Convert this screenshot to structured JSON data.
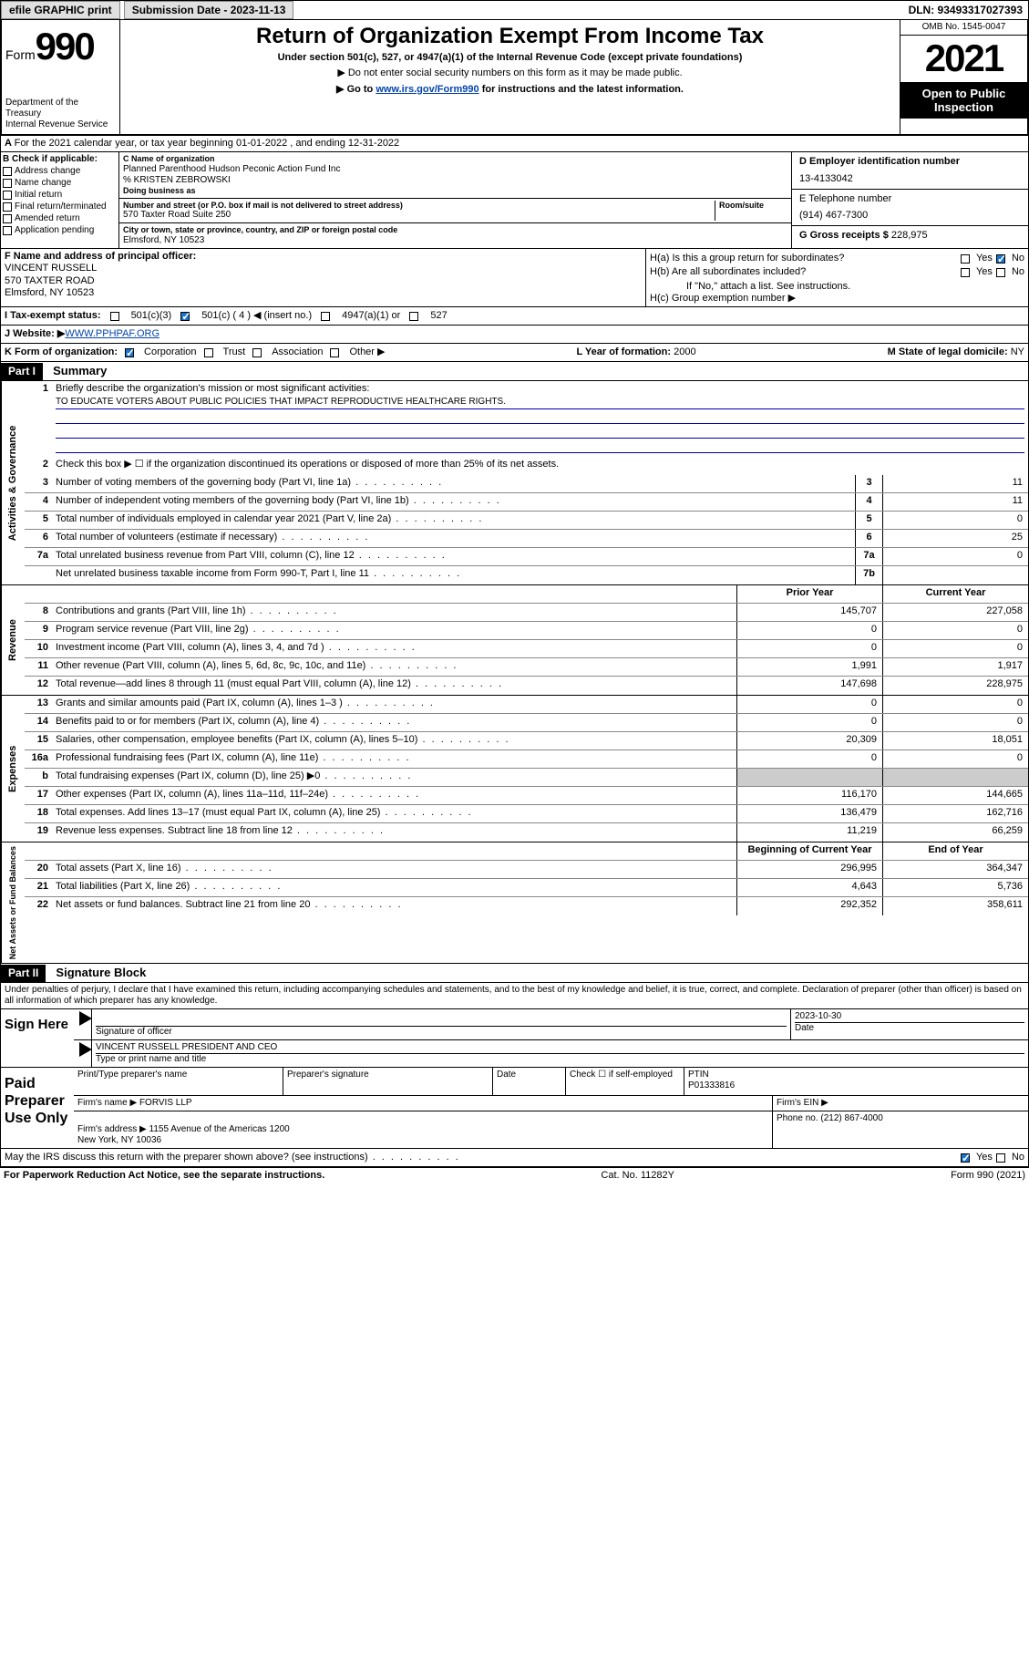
{
  "header": {
    "efile_label": "efile GRAPHIC print",
    "submission_label": "Submission Date - 2023-11-13",
    "dln": "DLN: 93493317027393"
  },
  "title": {
    "form_word": "Form",
    "form_num": "990",
    "main": "Return of Organization Exempt From Income Tax",
    "sub": "Under section 501(c), 527, or 4947(a)(1) of the Internal Revenue Code (except private foundations)",
    "note1": "▶ Do not enter social security numbers on this form as it may be made public.",
    "note2_pre": "▶ Go to ",
    "note2_link": "www.irs.gov/Form990",
    "note2_post": " for instructions and the latest information.",
    "dept": "Department of the Treasury\nInternal Revenue Service",
    "omb": "OMB No. 1545-0047",
    "year": "2021",
    "open": "Open to Public Inspection"
  },
  "A": {
    "text": "For the 2021 calendar year, or tax year beginning 01-01-2022   , and ending 12-31-2022"
  },
  "B": {
    "hdr": "B Check if applicable:",
    "items": [
      "Address change",
      "Name change",
      "Initial return",
      "Final return/terminated",
      "Amended return",
      "Application pending"
    ]
  },
  "C": {
    "name_lbl": "C Name of organization",
    "name": "Planned Parenthood Hudson Peconic Action Fund Inc",
    "care": "% KRISTEN ZEBROWSKI",
    "dba_lbl": "Doing business as",
    "addr_lbl": "Number and street (or P.O. box if mail is not delivered to street address)",
    "room_lbl": "Room/suite",
    "addr": "570 Taxter Road Suite 250",
    "city_lbl": "City or town, state or province, country, and ZIP or foreign postal code",
    "city": "Elmsford, NY  10523"
  },
  "D": {
    "lbl": "D Employer identification number",
    "val": "13-4133042"
  },
  "E": {
    "lbl": "E Telephone number",
    "val": "(914) 467-7300"
  },
  "G": {
    "lbl": "G Gross receipts $",
    "val": "228,975"
  },
  "F": {
    "lbl": "F  Name and address of principal officer:",
    "name": "VINCENT RUSSELL",
    "addr1": "570 TAXTER ROAD",
    "addr2": "Elmsford, NY  10523"
  },
  "H": {
    "a": "H(a)  Is this a group return for subordinates?",
    "b": "H(b)  Are all subordinates included?",
    "b_note": "If \"No,\" attach a list. See instructions.",
    "c": "H(c)  Group exemption number ▶",
    "yes": "Yes",
    "no": "No"
  },
  "I": {
    "lbl": "I     Tax-exempt status:",
    "o1": "501(c)(3)",
    "o2": "501(c) ( 4 ) ◀ (insert no.)",
    "o3": "4947(a)(1) or",
    "o4": "527"
  },
  "J": {
    "lbl": "J    Website: ▶ ",
    "val": "WWW.PPHPAF.ORG"
  },
  "K": {
    "lbl": "K Form of organization:",
    "o1": "Corporation",
    "o2": "Trust",
    "o3": "Association",
    "o4": "Other ▶"
  },
  "L": {
    "lbl": "L Year of formation: ",
    "val": "2000"
  },
  "M": {
    "lbl": "M State of legal domicile: ",
    "val": "NY"
  },
  "part1": {
    "hdr": "Part I",
    "title": "Summary"
  },
  "summary": {
    "mission_lbl": "Briefly describe the organization's mission or most significant activities:",
    "mission": "TO EDUCATE VOTERS ABOUT PUBLIC POLICIES THAT IMPACT REPRODUCTIVE HEALTHCARE RIGHTS.",
    "line2": "Check this box ▶ ☐  if the organization discontinued its operations or disposed of more than 25% of its net assets.",
    "rows_gov": [
      {
        "n": "3",
        "t": "Number of voting members of the governing body (Part VI, line 1a)",
        "box": "3",
        "v": "11"
      },
      {
        "n": "4",
        "t": "Number of independent voting members of the governing body (Part VI, line 1b)",
        "box": "4",
        "v": "11"
      },
      {
        "n": "5",
        "t": "Total number of individuals employed in calendar year 2021 (Part V, line 2a)",
        "box": "5",
        "v": "0"
      },
      {
        "n": "6",
        "t": "Total number of volunteers (estimate if necessary)",
        "box": "6",
        "v": "25"
      },
      {
        "n": "7a",
        "t": "Total unrelated business revenue from Part VIII, column (C), line 12",
        "box": "7a",
        "v": "0"
      },
      {
        "n": "",
        "t": "Net unrelated business taxable income from Form 990-T, Part I, line 11",
        "box": "7b",
        "v": ""
      }
    ],
    "col_prior": "Prior Year",
    "col_curr": "Current Year",
    "rows_rev": [
      {
        "n": "8",
        "t": "Contributions and grants (Part VIII, line 1h)",
        "p": "145,707",
        "c": "227,058"
      },
      {
        "n": "9",
        "t": "Program service revenue (Part VIII, line 2g)",
        "p": "0",
        "c": "0"
      },
      {
        "n": "10",
        "t": "Investment income (Part VIII, column (A), lines 3, 4, and 7d )",
        "p": "0",
        "c": "0"
      },
      {
        "n": "11",
        "t": "Other revenue (Part VIII, column (A), lines 5, 6d, 8c, 9c, 10c, and 11e)",
        "p": "1,991",
        "c": "1,917"
      },
      {
        "n": "12",
        "t": "Total revenue—add lines 8 through 11 (must equal Part VIII, column (A), line 12)",
        "p": "147,698",
        "c": "228,975"
      }
    ],
    "rows_exp": [
      {
        "n": "13",
        "t": "Grants and similar amounts paid (Part IX, column (A), lines 1–3 )",
        "p": "0",
        "c": "0"
      },
      {
        "n": "14",
        "t": "Benefits paid to or for members (Part IX, column (A), line 4)",
        "p": "0",
        "c": "0"
      },
      {
        "n": "15",
        "t": "Salaries, other compensation, employee benefits (Part IX, column (A), lines 5–10)",
        "p": "20,309",
        "c": "18,051"
      },
      {
        "n": "16a",
        "t": "Professional fundraising fees (Part IX, column (A), line 11e)",
        "p": "0",
        "c": "0"
      },
      {
        "n": "b",
        "t": "Total fundraising expenses (Part IX, column (D), line 25) ▶0",
        "p": "",
        "c": "",
        "shaded": true
      },
      {
        "n": "17",
        "t": "Other expenses (Part IX, column (A), lines 11a–11d, 11f–24e)",
        "p": "116,170",
        "c": "144,665"
      },
      {
        "n": "18",
        "t": "Total expenses. Add lines 13–17 (must equal Part IX, column (A), line 25)",
        "p": "136,479",
        "c": "162,716"
      },
      {
        "n": "19",
        "t": "Revenue less expenses. Subtract line 18 from line 12",
        "p": "11,219",
        "c": "66,259"
      }
    ],
    "col_begin": "Beginning of Current Year",
    "col_end": "End of Year",
    "rows_net": [
      {
        "n": "20",
        "t": "Total assets (Part X, line 16)",
        "p": "296,995",
        "c": "364,347"
      },
      {
        "n": "21",
        "t": "Total liabilities (Part X, line 26)",
        "p": "4,643",
        "c": "5,736"
      },
      {
        "n": "22",
        "t": "Net assets or fund balances. Subtract line 21 from line 20",
        "p": "292,352",
        "c": "358,611"
      }
    ],
    "side_gov": "Activities & Governance",
    "side_rev": "Revenue",
    "side_exp": "Expenses",
    "side_net": "Net Assets or Fund Balances"
  },
  "part2": {
    "hdr": "Part II",
    "title": "Signature Block"
  },
  "sig": {
    "decl": "Under penalties of perjury, I declare that I have examined this return, including accompanying schedules and statements, and to the best of my knowledge and belief, it is true, correct, and complete. Declaration of preparer (other than officer) is based on all information of which preparer has any knowledge.",
    "sign_here": "Sign Here",
    "date": "2023-10-30",
    "sig_officer_lbl": "Signature of officer",
    "date_lbl": "Date",
    "officer": "VINCENT RUSSELL  PRESIDENT AND CEO",
    "officer_lbl": "Type or print name and title",
    "paid": "Paid Preparer Use Only",
    "prep_name_lbl": "Print/Type preparer's name",
    "prep_sig_lbl": "Preparer's signature",
    "prep_date_lbl": "Date",
    "self_emp": "Check ☐ if self-employed",
    "ptin_lbl": "PTIN",
    "ptin": "P01333816",
    "firm_name_lbl": "Firm's name   ▶",
    "firm_name": "FORVIS LLP",
    "firm_ein_lbl": "Firm's EIN ▶",
    "firm_addr_lbl": "Firm's address ▶",
    "firm_addr": "1155 Avenue of the Americas 1200\nNew York, NY  10036",
    "firm_phone_lbl": "Phone no.",
    "firm_phone": "(212) 867-4000",
    "may_irs": "May the IRS discuss this return with the preparer shown above? (see instructions)"
  },
  "footer": {
    "left": "For Paperwork Reduction Act Notice, see the separate instructions.",
    "mid": "Cat. No. 11282Y",
    "right": "Form 990 (2021)"
  },
  "colors": {
    "link": "#0645ad",
    "check_blue": "#1a75d1",
    "rule_blue": "#0000aa"
  }
}
